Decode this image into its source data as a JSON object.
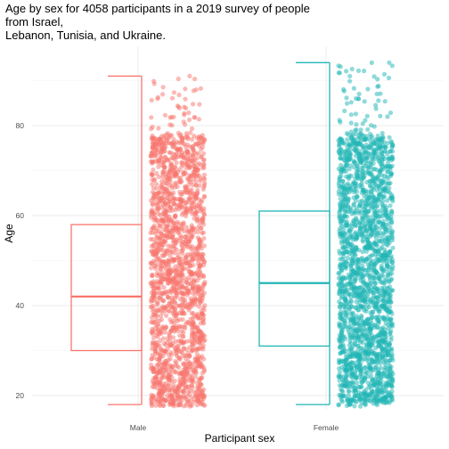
{
  "chart_data": {
    "type": "box_jitter",
    "title_lines": [
      "Age by sex for 4058 participants in a 2019 survey of people",
      "from Israel,",
      "Lebanon, Tunisia, and Ukraine."
    ],
    "xlabel": "Participant sex",
    "ylabel": "Age",
    "categories": [
      "Male",
      "Female"
    ],
    "y_ticks": [
      20,
      40,
      60,
      80
    ],
    "ylim": [
      15,
      97
    ],
    "grid": true,
    "colors": {
      "Male": "#f8766d",
      "Female": "#22b5b5"
    },
    "boxes": [
      {
        "category": "Male",
        "whisker_low": 18,
        "q1": 30,
        "median": 42,
        "q3": 58,
        "whisker_high": 91
      },
      {
        "category": "Female",
        "whisker_low": 18,
        "q1": 31,
        "median": 45,
        "q3": 61,
        "whisker_high": 94
      }
    ],
    "jitter": [
      {
        "category": "Male",
        "count": 1900,
        "min": 18,
        "max": 91
      },
      {
        "category": "Female",
        "count": 2158,
        "min": 18,
        "max": 94
      }
    ]
  }
}
